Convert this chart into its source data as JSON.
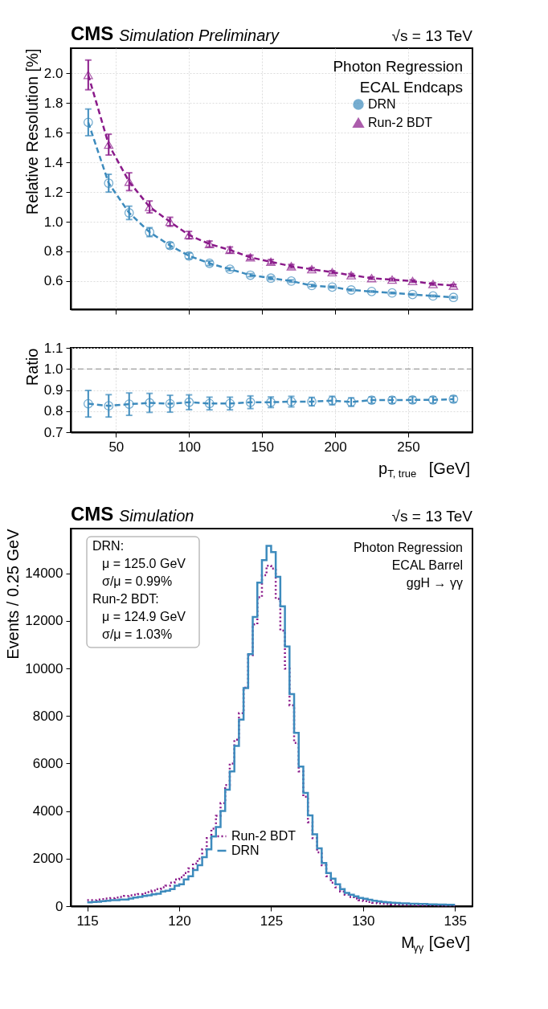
{
  "chart_data": [
    {
      "type": "line",
      "title": "CMS",
      "subtitle": "Simulation Preliminary",
      "ylabel": "Relative Resolution [%]",
      "annotations": [
        "√s = 13 TeV",
        "Photon Regression",
        "ECAL Endcaps"
      ],
      "x": [
        31,
        45,
        59,
        73,
        87,
        100,
        114,
        128,
        142,
        156,
        170,
        184,
        198,
        211,
        225,
        239,
        253,
        267,
        281
      ],
      "series": [
        {
          "name": "DRN",
          "color": "#3d8bbd",
          "marker": "circle",
          "values": [
            1.67,
            1.26,
            1.06,
            0.93,
            0.84,
            0.77,
            0.72,
            0.68,
            0.64,
            0.62,
            0.6,
            0.57,
            0.56,
            0.54,
            0.53,
            0.52,
            0.51,
            0.5,
            0.49
          ],
          "errors": [
            0.09,
            0.06,
            0.045,
            0.03,
            0.02,
            0.02,
            0.015,
            0.01,
            0.01,
            0.01,
            0.008,
            0.008,
            0.006,
            0.006,
            0.005,
            0.005,
            0.005,
            0.005,
            0.005
          ]
        },
        {
          "name": "Run-2 BDT",
          "color": "#8a1a8a",
          "marker": "triangle",
          "values": [
            1.99,
            1.52,
            1.27,
            1.1,
            1.0,
            0.91,
            0.85,
            0.81,
            0.76,
            0.73,
            0.7,
            0.68,
            0.66,
            0.64,
            0.62,
            0.61,
            0.6,
            0.58,
            0.57
          ],
          "errors": [
            0.1,
            0.07,
            0.06,
            0.04,
            0.03,
            0.025,
            0.02,
            0.02,
            0.015,
            0.015,
            0.012,
            0.01,
            0.01,
            0.01,
            0.008,
            0.008,
            0.008,
            0.008,
            0.008
          ]
        }
      ],
      "line_style": "dashed",
      "xlim": [
        19,
        294
      ],
      "xticks": [
        50,
        100,
        150,
        200,
        250
      ],
      "ylim": [
        0.41,
        2.17
      ],
      "yticks": [
        {
          "value": 0.6,
          "label": "0.6"
        },
        {
          "value": 0.8,
          "label": "0.8"
        },
        {
          "value": 1.0,
          "label": "1.0"
        },
        {
          "value": 1.2,
          "label": "1.2"
        },
        {
          "value": 1.4,
          "label": "1.4"
        },
        {
          "value": 1.6,
          "label": "1.6"
        },
        {
          "value": 1.8,
          "label": "1.8"
        },
        {
          "value": 2.0,
          "label": "2.0"
        }
      ],
      "grid": true,
      "legend": "top right",
      "tick_labels": "y"
    },
    {
      "type": "line",
      "xlabel": "p$_{T, true}$ [GeV]",
      "ylabel": "Ratio",
      "x": [
        31,
        45,
        59,
        73,
        87,
        100,
        114,
        128,
        142,
        156,
        170,
        184,
        198,
        211,
        225,
        239,
        253,
        267,
        281
      ],
      "series": [
        {
          "color": "#3d8bbd",
          "values": [
            0.835,
            0.825,
            0.833,
            0.839,
            0.835,
            0.842,
            0.836,
            0.836,
            0.842,
            0.842,
            0.845,
            0.845,
            0.85,
            0.843,
            0.852,
            0.852,
            0.853,
            0.853,
            0.857
          ],
          "errors": [
            0.063,
            0.053,
            0.053,
            0.045,
            0.04,
            0.035,
            0.03,
            0.03,
            0.03,
            0.025,
            0.025,
            0.02,
            0.02,
            0.02,
            0.015,
            0.015,
            0.015,
            0.015,
            0.015
          ]
        }
      ],
      "ref_lines": [
        {
          "axis": "y",
          "value": 1.0,
          "color": "#888888",
          "line_style": "dashed"
        }
      ],
      "marker": "circle",
      "line_style": "dashed",
      "xlim": [
        19,
        294
      ],
      "xticks": [
        50,
        100,
        150,
        200,
        250
      ],
      "ylim": [
        0.7,
        1.1
      ],
      "yticks": [
        {
          "value": 0.7,
          "label": "0.7"
        },
        {
          "value": 0.8,
          "label": "0.8"
        },
        {
          "value": 0.9,
          "label": "0.9"
        },
        {
          "value": 1.0,
          "label": "1.0"
        },
        {
          "value": 1.1,
          "label": "1.1"
        }
      ],
      "grid": true
    },
    {
      "type": "histogram",
      "title": "CMS",
      "subtitle": "Simulation",
      "xlabel": "M$_{γγ}$ [GeV]",
      "ylabel": "Events / 0.25 GeV",
      "annotations": [
        "√s = 13 TeV",
        "Photon Regression",
        "ECAL Barrel",
        "ggH → γγ",
        "DRN:",
        "μ = 125.0 GeV",
        "σ/μ = 0.99%",
        "Run-2 BDT:",
        "μ = 124.9 GeV",
        "σ/μ = 1.03%"
      ],
      "bins": [
        115.0,
        115.25,
        115.5,
        115.75,
        116.0,
        116.25,
        116.5,
        116.75,
        117.0,
        117.25,
        117.5,
        117.75,
        118.0,
        118.25,
        118.5,
        118.75,
        119.0,
        119.25,
        119.5,
        119.75,
        120.0,
        120.25,
        120.5,
        120.75,
        121.0,
        121.25,
        121.5,
        121.75,
        122.0,
        122.25,
        122.5,
        122.75,
        123.0,
        123.25,
        123.5,
        123.75,
        124.0,
        124.25,
        124.5,
        124.75,
        125.0,
        125.25,
        125.5,
        125.75,
        126.0,
        126.25,
        126.5,
        126.75,
        127.0,
        127.25,
        127.5,
        127.75,
        128.0,
        128.25,
        128.5,
        128.75,
        129.0,
        129.25,
        129.5,
        129.75,
        130.0,
        130.25,
        130.5,
        130.75,
        131.0,
        131.25,
        131.5,
        131.75,
        132.0,
        132.25,
        132.5,
        132.75,
        133.0,
        133.25,
        133.5,
        133.75,
        134.0,
        134.25,
        134.5,
        134.75,
        135.0
      ],
      "series": [
        {
          "name": "Run-2 BDT",
          "color": "#8a1a8a",
          "line_style": "dotted",
          "values": [
            255,
            255,
            280,
            295,
            320,
            335,
            360,
            390,
            430,
            455,
            480,
            510,
            550,
            590,
            655,
            720,
            790,
            860,
            990,
            1120,
            1220,
            1390,
            1590,
            1790,
            1990,
            2390,
            2860,
            3260,
            3800,
            4330,
            5090,
            6000,
            7000,
            8120,
            9190,
            10560,
            11850,
            12990,
            13920,
            14320,
            14200,
            12920,
            11590,
            9990,
            8450,
            6870,
            5670,
            4600,
            3530,
            2860,
            2260,
            1720,
            1260,
            990,
            790,
            615,
            480,
            390,
            320,
            255,
            215,
            175,
            145,
            120,
            105,
            95,
            80,
            70,
            65,
            60,
            55,
            50,
            45,
            45,
            40,
            40,
            35,
            35,
            30,
            30
          ]
        },
        {
          "name": "DRN",
          "color": "#3d8bbd",
          "line_style": "solid",
          "values": [
            160,
            175,
            190,
            215,
            230,
            255,
            255,
            280,
            280,
            320,
            360,
            390,
            430,
            455,
            495,
            520,
            615,
            650,
            720,
            860,
            920,
            1120,
            1260,
            1520,
            1720,
            2060,
            2390,
            2930,
            3330,
            4000,
            4900,
            5670,
            6740,
            7850,
            9170,
            10600,
            12160,
            13610,
            14550,
            15150,
            14890,
            13850,
            12610,
            10920,
            8920,
            7290,
            5870,
            4760,
            3820,
            3020,
            2430,
            1820,
            1390,
            1160,
            920,
            720,
            560,
            480,
            410,
            350,
            310,
            270,
            230,
            200,
            175,
            160,
            145,
            135,
            120,
            120,
            105,
            105,
            95,
            95,
            80,
            80,
            65,
            65,
            55,
            55
          ]
        }
      ],
      "xlim": [
        114.1,
        135.95
      ],
      "xticks": [
        115,
        120,
        125,
        130,
        135
      ],
      "ylim": [
        0,
        15880
      ],
      "yticks": [
        0,
        2000,
        4000,
        6000,
        8000,
        10000,
        12000,
        14000
      ],
      "legend": "bottom"
    }
  ]
}
